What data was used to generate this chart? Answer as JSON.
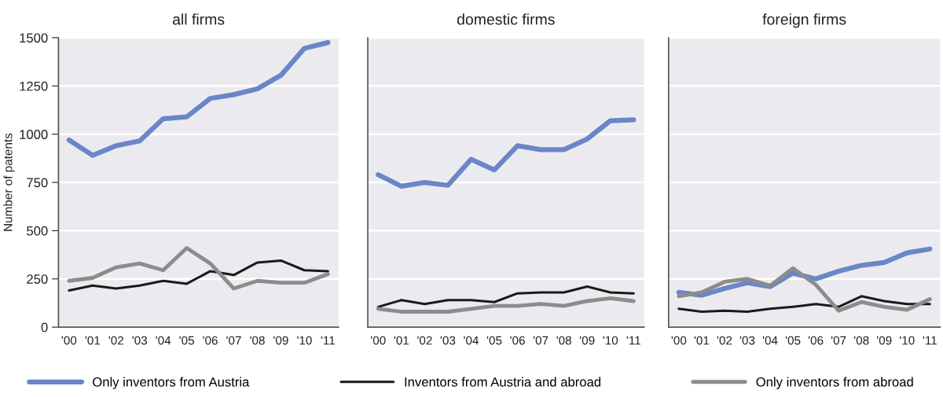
{
  "chart_data": [
    {
      "type": "line",
      "title": "all firms",
      "ylabel": "Number of patents",
      "categories": [
        "'00",
        "'01",
        "'02",
        "'03",
        "'04",
        "'05",
        "'06",
        "'07",
        "'08",
        "'09",
        "'10",
        "'11"
      ],
      "ylim": [
        0,
        1500
      ],
      "yticks": [
        0,
        250,
        500,
        750,
        1000,
        1250,
        1500
      ],
      "grid": "y",
      "legend": "bottom",
      "series": [
        {
          "name": "Only inventors from Austria",
          "color": "#6a86c8",
          "values": [
            970,
            890,
            940,
            965,
            1080,
            1090,
            1185,
            1205,
            1235,
            1305,
            1445,
            1475
          ]
        },
        {
          "name": "Inventors from Austria and abroad",
          "color": "#1a1a1a",
          "values": [
            190,
            215,
            200,
            215,
            240,
            225,
            290,
            270,
            335,
            345,
            295,
            290
          ]
        },
        {
          "name": "Only inventors from abroad",
          "color": "#8c8c8c",
          "values": [
            240,
            255,
            310,
            330,
            295,
            410,
            330,
            200,
            240,
            230,
            230,
            275
          ]
        }
      ]
    },
    {
      "type": "line",
      "title": "domestic firms",
      "categories": [
        "'00",
        "'01",
        "'02",
        "'03",
        "'04",
        "'05",
        "'06",
        "'07",
        "'08",
        "'09",
        "'10",
        "'11"
      ],
      "ylim": [
        0,
        1500
      ],
      "yticks": [
        0,
        250,
        500,
        750,
        1000,
        1250,
        1500
      ],
      "grid": "y",
      "tick_labels": "x",
      "series": [
        {
          "color": "#6a86c8",
          "values": [
            790,
            730,
            750,
            735,
            870,
            815,
            940,
            920,
            920,
            975,
            1070,
            1075
          ]
        },
        {
          "color": "#1a1a1a",
          "values": [
            105,
            140,
            120,
            140,
            140,
            130,
            175,
            180,
            180,
            210,
            180,
            175
          ]
        },
        {
          "color": "#8c8c8c",
          "values": [
            95,
            80,
            80,
            80,
            95,
            110,
            110,
            120,
            110,
            135,
            150,
            135
          ]
        }
      ]
    },
    {
      "type": "line",
      "title": "foreign firms",
      "categories": [
        "'00",
        "'01",
        "'02",
        "'03",
        "'04",
        "'05",
        "'06",
        "'07",
        "'08",
        "'09",
        "'10",
        "'11"
      ],
      "ylim": [
        0,
        1500
      ],
      "yticks": [
        0,
        250,
        500,
        750,
        1000,
        1250,
        1500
      ],
      "grid": "y",
      "tick_labels": "x",
      "series": [
        {
          "color": "#6a86c8",
          "values": [
            180,
            165,
            200,
            230,
            210,
            280,
            250,
            290,
            320,
            335,
            385,
            405
          ]
        },
        {
          "color": "#1a1a1a",
          "values": [
            95,
            80,
            85,
            80,
            95,
            105,
            120,
            105,
            160,
            135,
            120,
            120
          ]
        },
        {
          "color": "#8c8c8c",
          "values": [
            160,
            180,
            235,
            250,
            215,
            305,
            220,
            85,
            130,
            105,
            90,
            145
          ]
        }
      ]
    }
  ]
}
